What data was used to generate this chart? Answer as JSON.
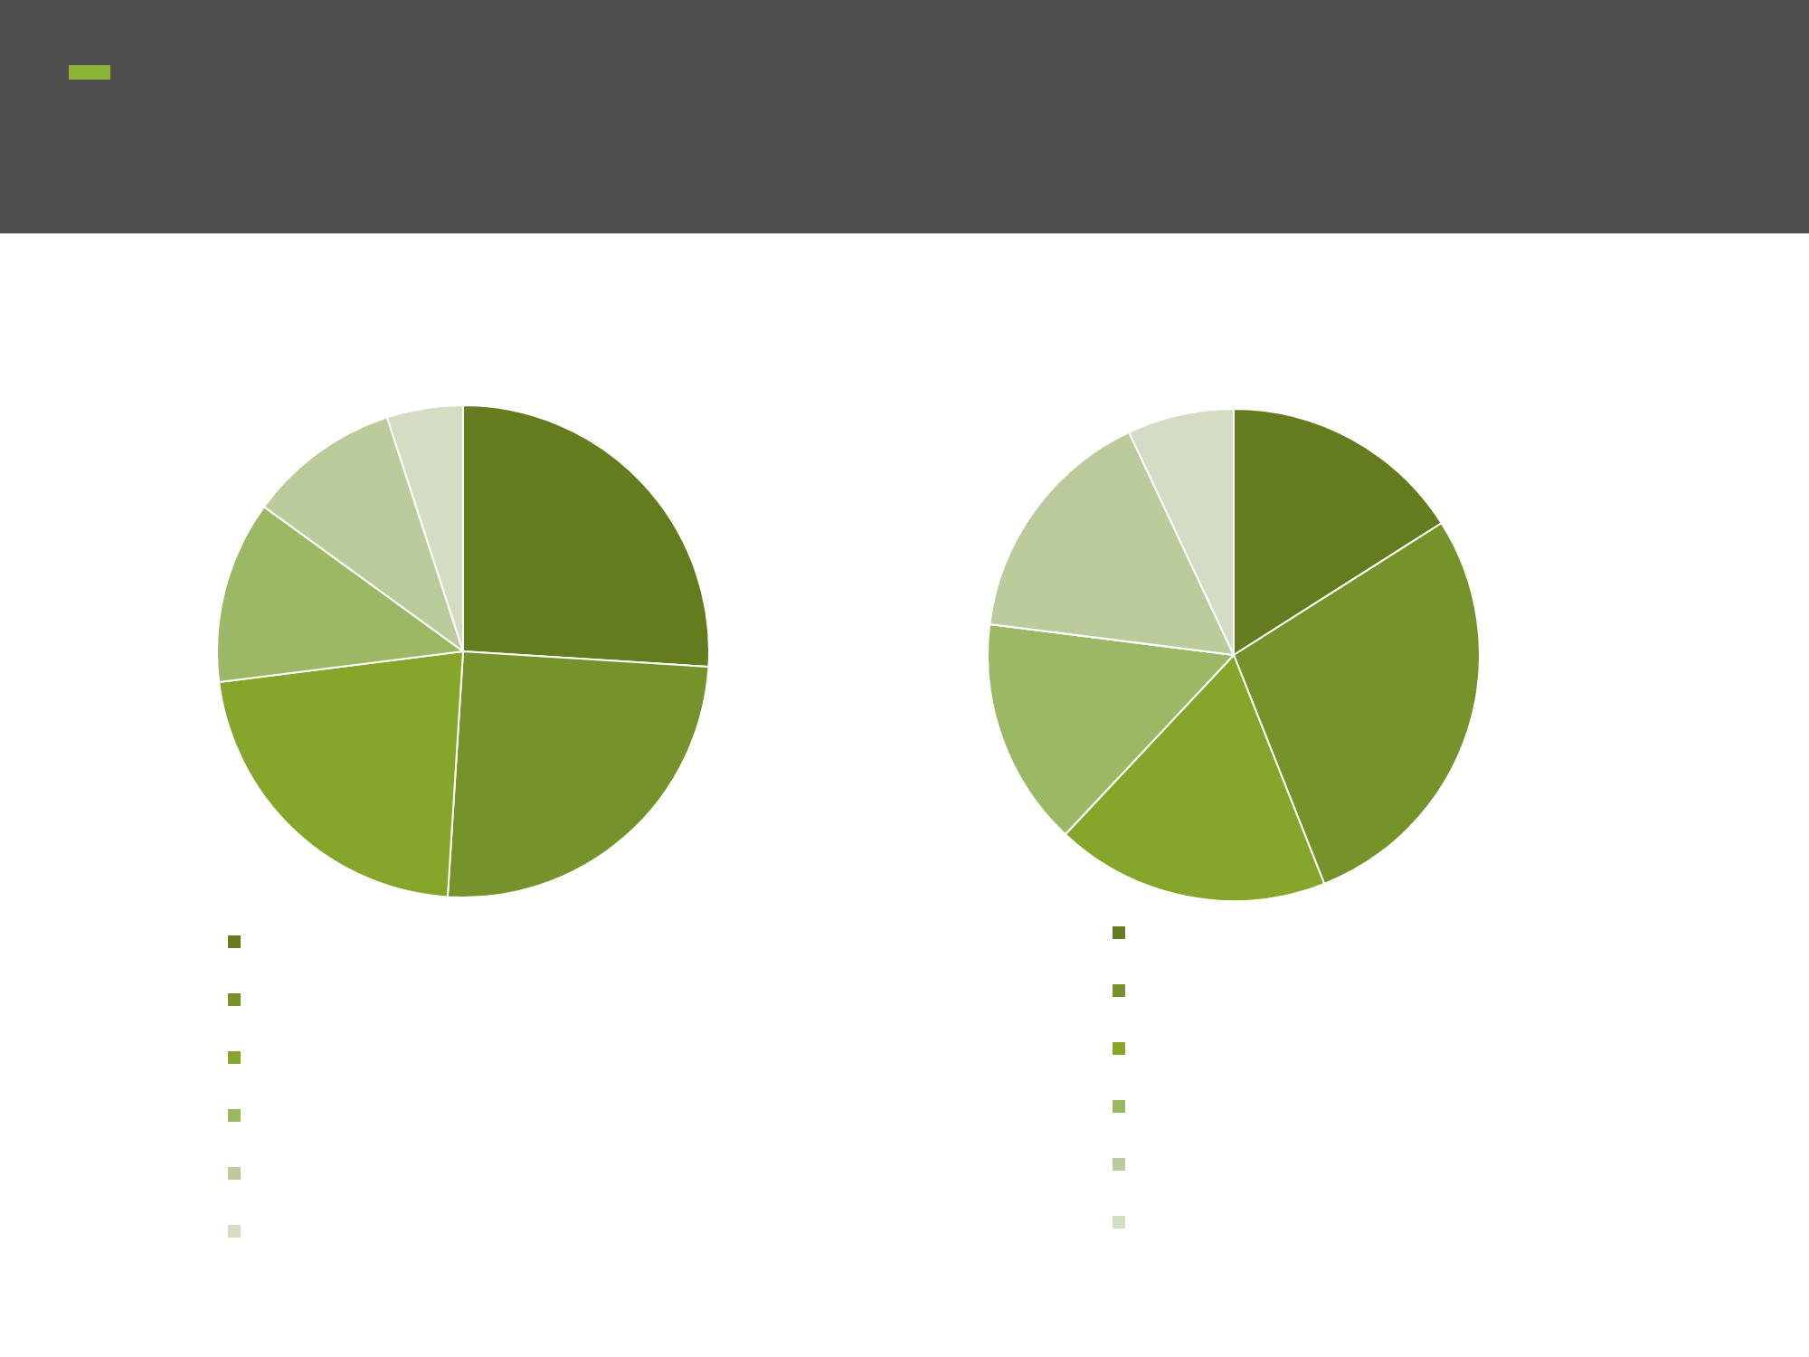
{
  "chart_data": [
    {
      "type": "pie",
      "categories": [
        null,
        null,
        null,
        null,
        null,
        null
      ],
      "values": [
        26,
        25,
        22,
        12,
        10,
        5
      ],
      "colors": [
        "#647c1e",
        "#76922a",
        "#85a52b",
        "#9bb865",
        "#bccb9c",
        "#d3ddc4"
      ]
    },
    {
      "type": "pie",
      "categories": [
        null,
        null,
        null,
        null,
        null,
        null
      ],
      "values": [
        16,
        28,
        18,
        15,
        16,
        7
      ],
      "colors": [
        "#647c1e",
        "#76922a",
        "#85a52b",
        "#9bb865",
        "#bccb9c",
        "#d3ddc4"
      ]
    }
  ]
}
